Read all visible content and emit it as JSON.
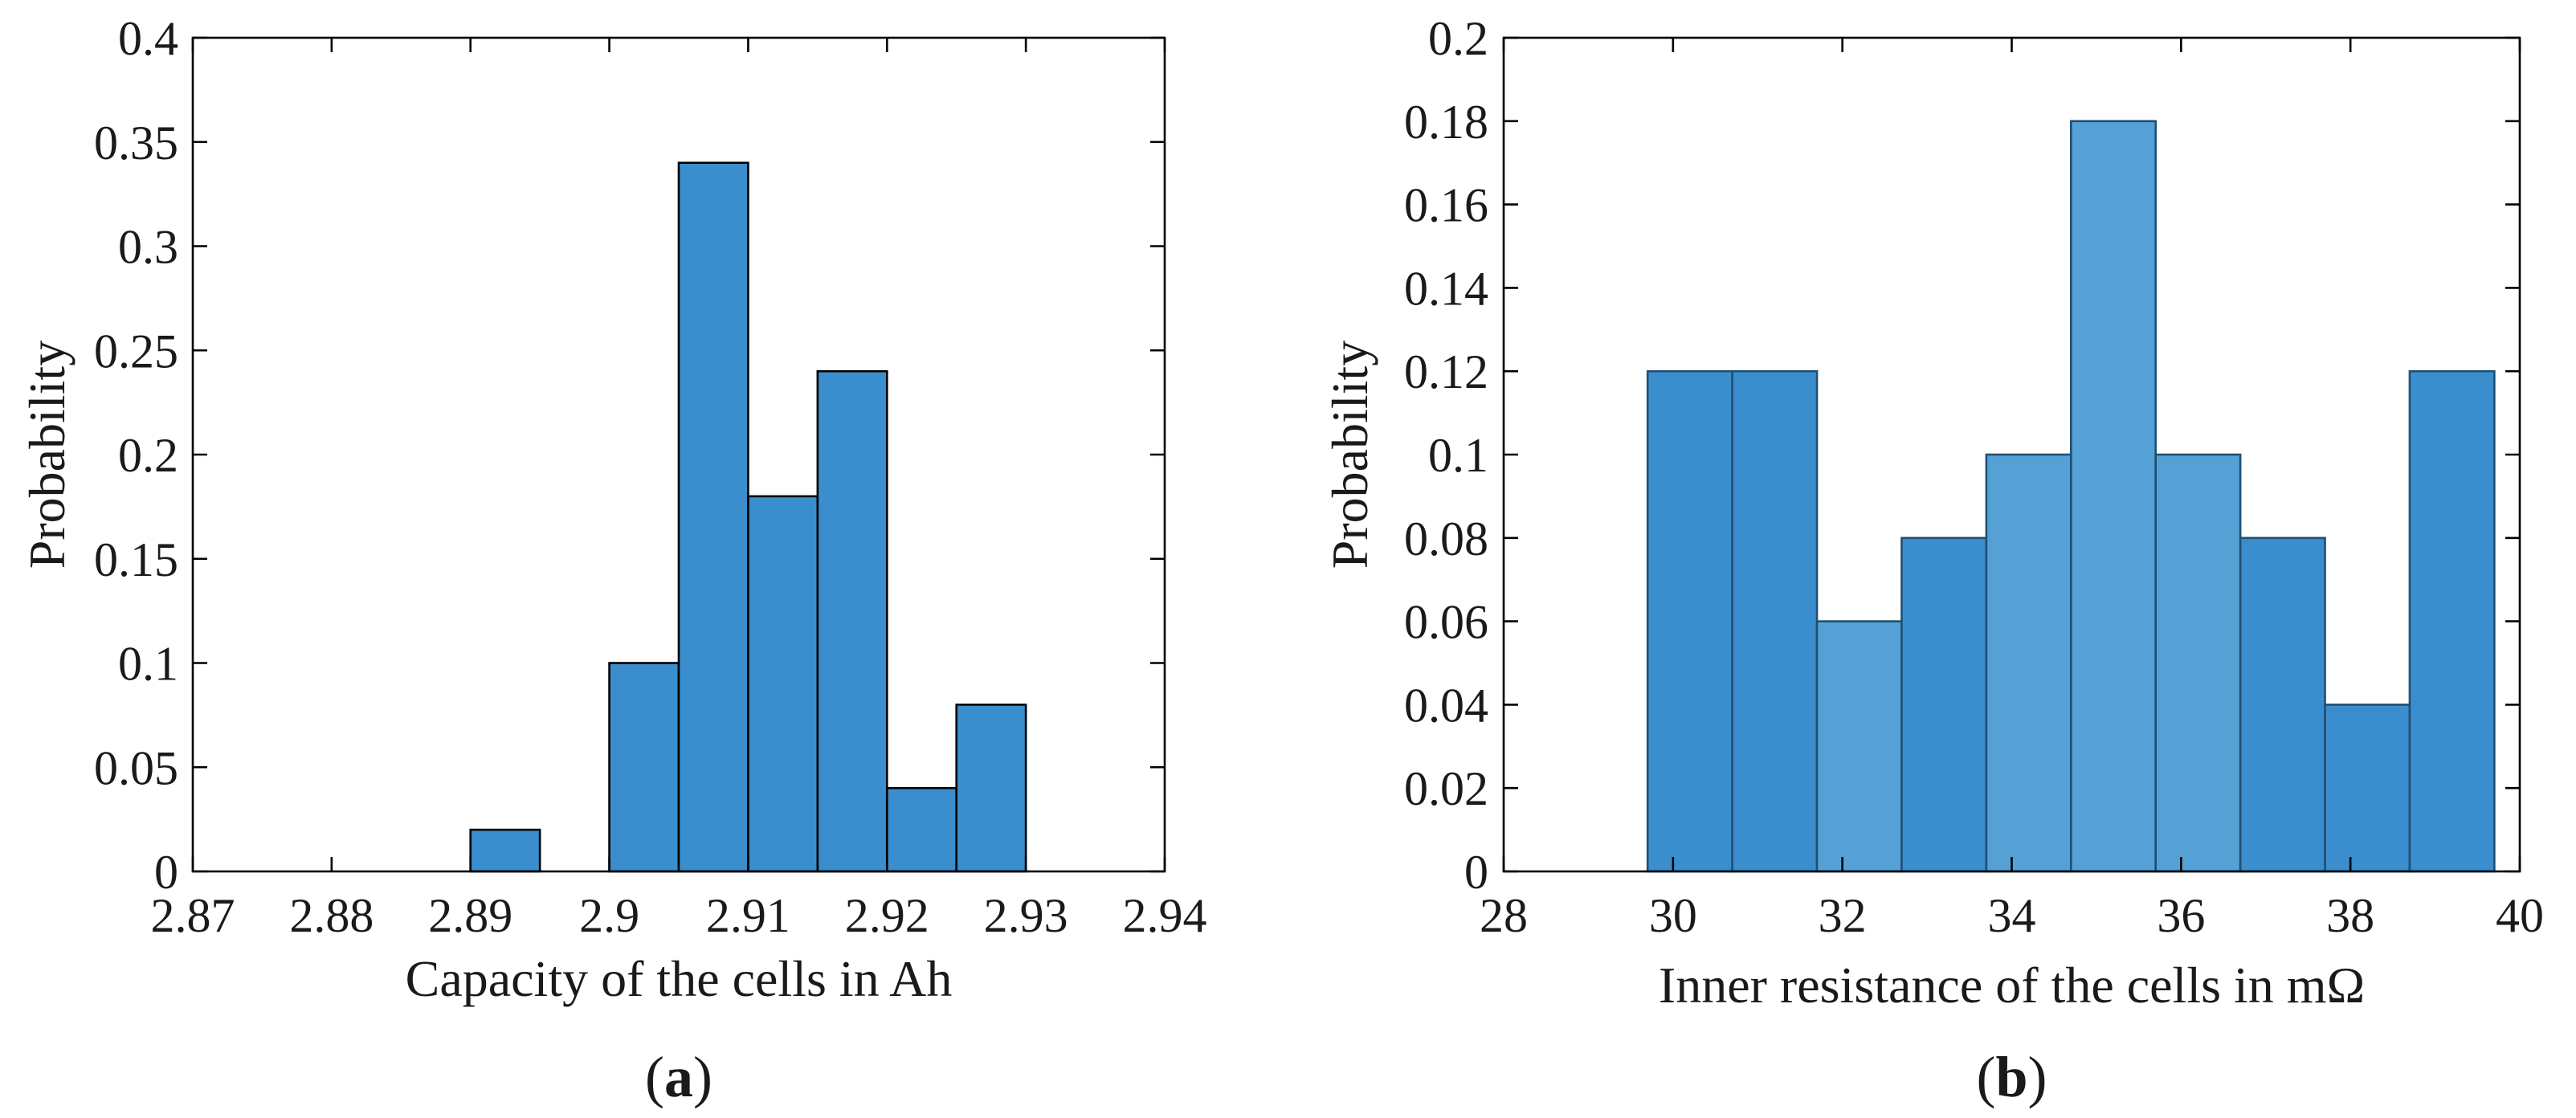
{
  "chart_data": [
    {
      "type": "bar",
      "title": "",
      "panel_label": "a",
      "xlabel": "Capacity of the cells in Ah",
      "ylabel": "Probability",
      "xlim": [
        2.87,
        2.94
      ],
      "ylim": [
        0,
        0.4
      ],
      "xticks": [
        "2.87",
        "2.88",
        "2.89",
        "2.9",
        "2.91",
        "2.92",
        "2.93",
        "2.94"
      ],
      "yticks": [
        "0",
        "0.05",
        "0.1",
        "0.15",
        "0.2",
        "0.25",
        "0.3",
        "0.35",
        "0.4"
      ],
      "bars": [
        {
          "x0": 2.89,
          "x1": 2.895,
          "value": 0.02
        },
        {
          "x0": 2.9,
          "x1": 2.905,
          "value": 0.1
        },
        {
          "x0": 2.905,
          "x1": 2.91,
          "value": 0.34
        },
        {
          "x0": 2.91,
          "x1": 2.915,
          "value": 0.18
        },
        {
          "x0": 2.915,
          "x1": 2.92,
          "value": 0.24
        },
        {
          "x0": 2.92,
          "x1": 2.925,
          "value": 0.04
        },
        {
          "x0": 2.925,
          "x1": 2.93,
          "value": 0.08
        }
      ],
      "bar_color": "#3a8ecd",
      "edge_color": "#000000"
    },
    {
      "type": "bar",
      "title": "",
      "panel_label": "b",
      "xlabel": "Inner resistance of the cells in mΩ",
      "ylabel": "Probability",
      "xlim": [
        28,
        40
      ],
      "ylim": [
        0,
        0.2
      ],
      "xticks": [
        "28",
        "30",
        "32",
        "34",
        "36",
        "38",
        "40"
      ],
      "yticks": [
        "0",
        "0.02",
        "0.04",
        "0.06",
        "0.08",
        "0.1",
        "0.12",
        "0.14",
        "0.16",
        "0.18",
        "0.2"
      ],
      "bars": [
        {
          "x0": 29.7,
          "x1": 30.7,
          "value": 0.12
        },
        {
          "x0": 30.7,
          "x1": 31.7,
          "value": 0.12
        },
        {
          "x0": 31.7,
          "x1": 32.7,
          "value": 0.06
        },
        {
          "x0": 32.7,
          "x1": 33.7,
          "value": 0.08
        },
        {
          "x0": 33.7,
          "x1": 34.7,
          "value": 0.1
        },
        {
          "x0": 34.7,
          "x1": 35.7,
          "value": 0.18
        },
        {
          "x0": 35.7,
          "x1": 36.7,
          "value": 0.1
        },
        {
          "x0": 36.7,
          "x1": 37.7,
          "value": 0.08
        },
        {
          "x0": 37.7,
          "x1": 38.7,
          "value": 0.04
        },
        {
          "x0": 38.7,
          "x1": 39.7,
          "value": 0.12
        }
      ],
      "bar_colors": [
        "#3a8ecd",
        "#3a8ecd",
        "#55a1d6",
        "#3a8ecd",
        "#55a1d6",
        "#55a1d6",
        "#55a1d6",
        "#3a8ecd",
        "#3a8ecd",
        "#3a8ecd"
      ],
      "edge_color": "#1f4f73"
    }
  ]
}
